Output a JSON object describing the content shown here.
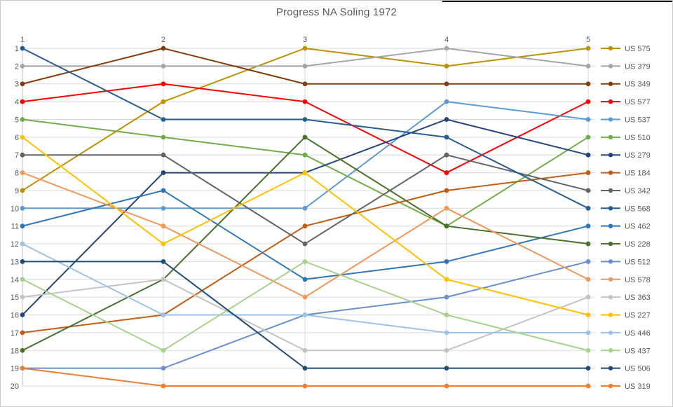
{
  "chart_data": {
    "type": "line",
    "title": "Progress NA Soling 1972",
    "x_axis": {
      "position": "top",
      "labels": [
        "1",
        "2",
        "3",
        "4",
        "5"
      ]
    },
    "y_axis": {
      "inverted": true,
      "min": 1,
      "max": 20,
      "tick_labels": [
        "1",
        "2",
        "3",
        "4",
        "5",
        "6",
        "7",
        "8",
        "9",
        "10",
        "11",
        "12",
        "13",
        "14",
        "15",
        "16",
        "17",
        "18",
        "19",
        "20"
      ]
    },
    "grid": {
      "horizontal": true,
      "vertical": true,
      "color": "#d9d9d9",
      "axis_color": "#bfbfbf"
    },
    "legend_position": "right",
    "text_color": "#595959",
    "series": [
      {
        "name": "US 575",
        "color": "#BF9000",
        "ranks": [
          9,
          4,
          1,
          2,
          1
        ]
      },
      {
        "name": "US 379",
        "color": "#A5A5A5",
        "ranks": [
          2,
          2,
          2,
          1,
          2
        ]
      },
      {
        "name": "US 349",
        "color": "#843C0C",
        "ranks": [
          3,
          1,
          3,
          3,
          3
        ]
      },
      {
        "name": "US 577",
        "color": "#FF0000",
        "ranks": [
          4,
          3,
          4,
          8,
          4
        ]
      },
      {
        "name": "US 537",
        "color": "#5B9BD5",
        "ranks": [
          10,
          10,
          10,
          4,
          5
        ]
      },
      {
        "name": "US 510",
        "color": "#70AD47",
        "ranks": [
          5,
          6,
          7,
          11,
          6
        ]
      },
      {
        "name": "US 279",
        "color": "#264478",
        "ranks": [
          16,
          8,
          8,
          5,
          7
        ]
      },
      {
        "name": "US 184",
        "color": "#C55A11",
        "ranks": [
          17,
          16,
          11,
          9,
          8
        ]
      },
      {
        "name": "US 342",
        "color": "#636363",
        "ranks": [
          7,
          7,
          12,
          7,
          9
        ]
      },
      {
        "name": "US 568",
        "color": "#255E91",
        "ranks": [
          1,
          5,
          5,
          6,
          10
        ]
      },
      {
        "name": "US 462",
        "color": "#2E75B6",
        "ranks": [
          11,
          9,
          14,
          13,
          11
        ]
      },
      {
        "name": "US 228",
        "color": "#4A7029",
        "ranks": [
          18,
          14,
          6,
          11,
          12
        ]
      },
      {
        "name": "US 512",
        "color": "#698ED0",
        "ranks": [
          19,
          19,
          16,
          15,
          13
        ]
      },
      {
        "name": "US 578",
        "color": "#F1975A",
        "ranks": [
          8,
          11,
          15,
          10,
          14
        ]
      },
      {
        "name": "US 363",
        "color": "#C3C3C3",
        "ranks": [
          15,
          14,
          18,
          18,
          15
        ]
      },
      {
        "name": "US 227",
        "color": "#FFC000",
        "ranks": [
          6,
          12,
          8,
          14,
          16
        ]
      },
      {
        "name": "US 446",
        "color": "#9DC3E6",
        "ranks": [
          12,
          16,
          16,
          17,
          17
        ]
      },
      {
        "name": "US 437",
        "color": "#A9D18E",
        "ranks": [
          14,
          18,
          13,
          16,
          18
        ]
      },
      {
        "name": "US 506",
        "color": "#1F4E79",
        "ranks": [
          13,
          13,
          19,
          19,
          19
        ]
      },
      {
        "name": "US 319",
        "color": "#ED7D31",
        "ranks": [
          19,
          20,
          20,
          20,
          20
        ]
      }
    ]
  }
}
